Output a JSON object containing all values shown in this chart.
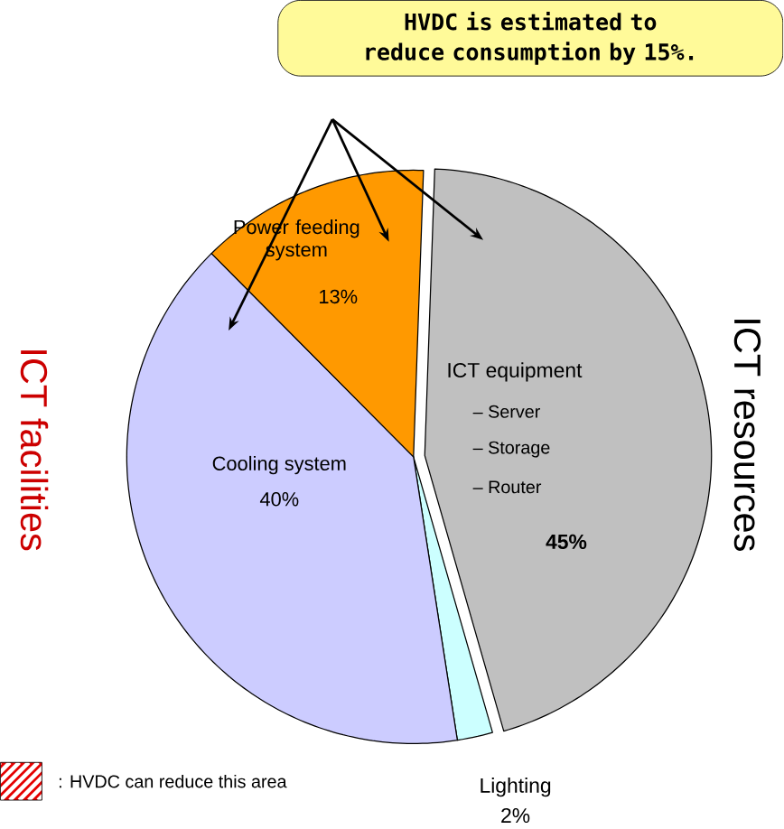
{
  "chart_data": {
    "type": "pie",
    "categories": [
      "ICT equipment",
      "Lighting",
      "Cooling system",
      "Power feeding system"
    ],
    "values": [
      45,
      2,
      40,
      13
    ],
    "colors": [
      "#c0c0c0",
      "#ccffff",
      "#ccccff",
      "#ff9900"
    ],
    "value_labels": [
      "45%",
      "2%",
      "40%",
      "13%"
    ],
    "annotations": [
      "HVDC is estimated to reduce consumption by 15%.",
      "ICT facilities",
      "ICT resources",
      "– Server",
      "– Storage",
      "–  Router",
      ": HVDC can reduce this area"
    ]
  }
}
